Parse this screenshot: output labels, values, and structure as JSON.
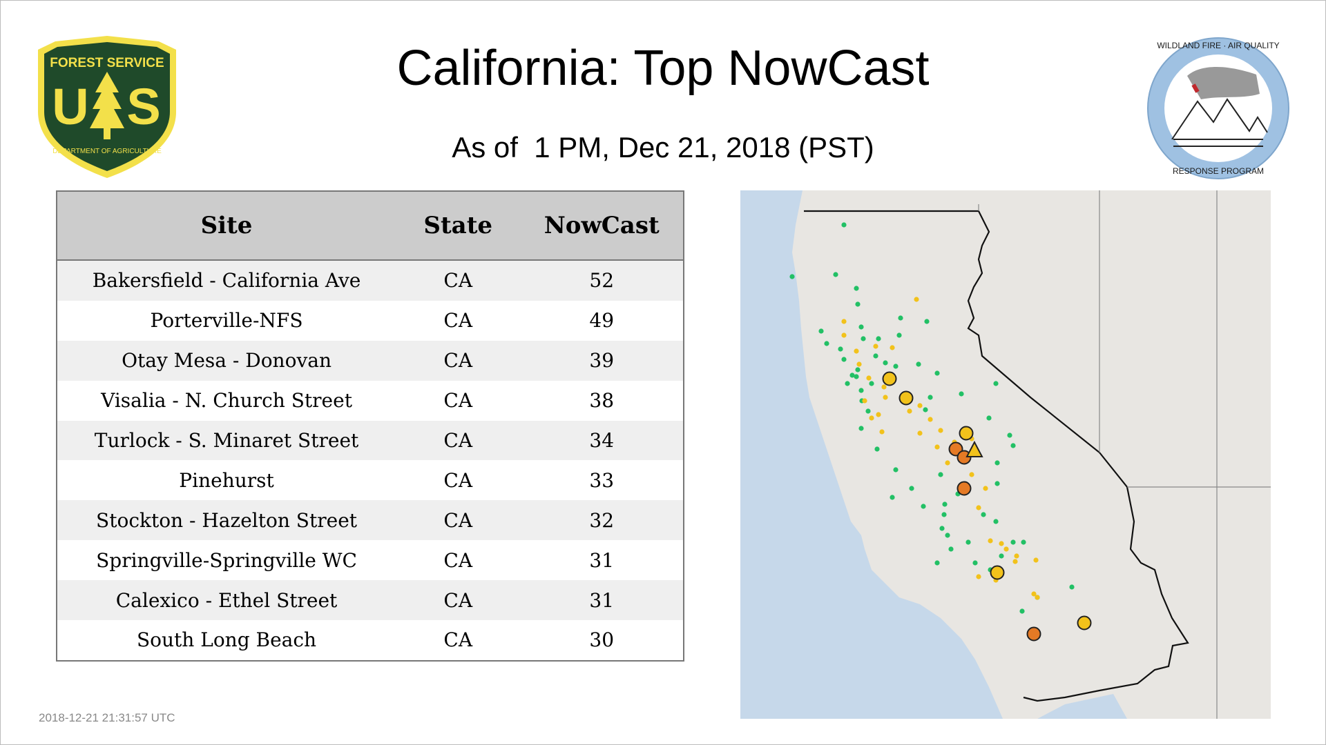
{
  "header": {
    "title": "California: Top NowCast",
    "subtitle": "As of  1 PM, Dec 21, 2018 (PST)"
  },
  "logos": {
    "left": {
      "top_text": "FOREST SERVICE",
      "letters": "U S",
      "bottom_text": "DEPARTMENT OF AGRICULTURE"
    },
    "right": {
      "top_text": "WILDLAND FIRE · AIR QUALITY",
      "bottom_text": "RESPONSE PROGRAM"
    }
  },
  "table": {
    "headers": {
      "site": "Site",
      "state": "State",
      "nowcast": "NowCast"
    },
    "rows": [
      {
        "site": "Bakersfield - California Ave",
        "state": "CA",
        "nowcast": "52"
      },
      {
        "site": "Porterville-NFS",
        "state": "CA",
        "nowcast": "49"
      },
      {
        "site": "Otay Mesa - Donovan",
        "state": "CA",
        "nowcast": "39"
      },
      {
        "site": "Visalia - N. Church Street",
        "state": "CA",
        "nowcast": "38"
      },
      {
        "site": "Turlock - S. Minaret Street",
        "state": "CA",
        "nowcast": "34"
      },
      {
        "site": "Pinehurst",
        "state": "CA",
        "nowcast": "33"
      },
      {
        "site": "Stockton - Hazelton Street",
        "state": "CA",
        "nowcast": "32"
      },
      {
        "site": "Springville-Springville WC",
        "state": "CA",
        "nowcast": "31"
      },
      {
        "site": "Calexico - Ethel Street",
        "state": "CA",
        "nowcast": "31"
      },
      {
        "site": "South Long Beach",
        "state": "CA",
        "nowcast": "30"
      }
    ]
  },
  "timestamp": "2018-12-21 21:31:57 UTC",
  "map": {
    "colors": {
      "ocean": "#c6d8ea",
      "land": "#e8e6e2",
      "good": "#22c065",
      "moderate": "#f2c21b",
      "usg": "#e57a25",
      "border": "#111111"
    }
  }
}
